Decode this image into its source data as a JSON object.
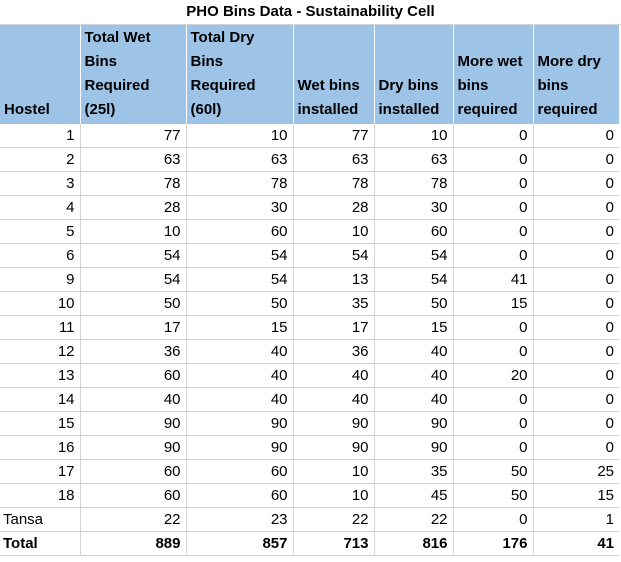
{
  "title": "PHO Bins Data - Sustainability Cell",
  "headers": [
    "Hostel",
    "Total Wet\nBins\nRequired\n(25l)",
    "Total Dry\nBins\nRequired\n(60l)",
    "Wet bins\ninstalled",
    "Dry bins\ninstalled",
    "More wet\nbins\nrequired",
    "More dry\nbins\nrequired"
  ],
  "rows": [
    [
      "1",
      "77",
      "10",
      "77",
      "10",
      "0",
      "0"
    ],
    [
      "2",
      "63",
      "63",
      "63",
      "63",
      "0",
      "0"
    ],
    [
      "3",
      "78",
      "78",
      "78",
      "78",
      "0",
      "0"
    ],
    [
      "4",
      "28",
      "30",
      "28",
      "30",
      "0",
      "0"
    ],
    [
      "5",
      "10",
      "60",
      "10",
      "60",
      "0",
      "0"
    ],
    [
      "6",
      "54",
      "54",
      "54",
      "54",
      "0",
      "0"
    ],
    [
      "9",
      "54",
      "54",
      "13",
      "54",
      "41",
      "0"
    ],
    [
      "10",
      "50",
      "50",
      "35",
      "50",
      "15",
      "0"
    ],
    [
      "11",
      "17",
      "15",
      "17",
      "15",
      "0",
      "0"
    ],
    [
      "12",
      "36",
      "40",
      "36",
      "40",
      "0",
      "0"
    ],
    [
      "13",
      "60",
      "40",
      "40",
      "40",
      "20",
      "0"
    ],
    [
      "14",
      "40",
      "40",
      "40",
      "40",
      "0",
      "0"
    ],
    [
      "15",
      "90",
      "90",
      "90",
      "90",
      "0",
      "0"
    ],
    [
      "16",
      "90",
      "90",
      "90",
      "90",
      "0",
      "0"
    ],
    [
      "17",
      "60",
      "60",
      "10",
      "35",
      "50",
      "25"
    ],
    [
      "18",
      "60",
      "60",
      "10",
      "45",
      "50",
      "15"
    ],
    [
      "Tansa",
      "22",
      "23",
      "22",
      "22",
      "0",
      "1"
    ]
  ],
  "total": [
    "Total",
    "889",
    "857",
    "713",
    "816",
    "176",
    "41"
  ]
}
